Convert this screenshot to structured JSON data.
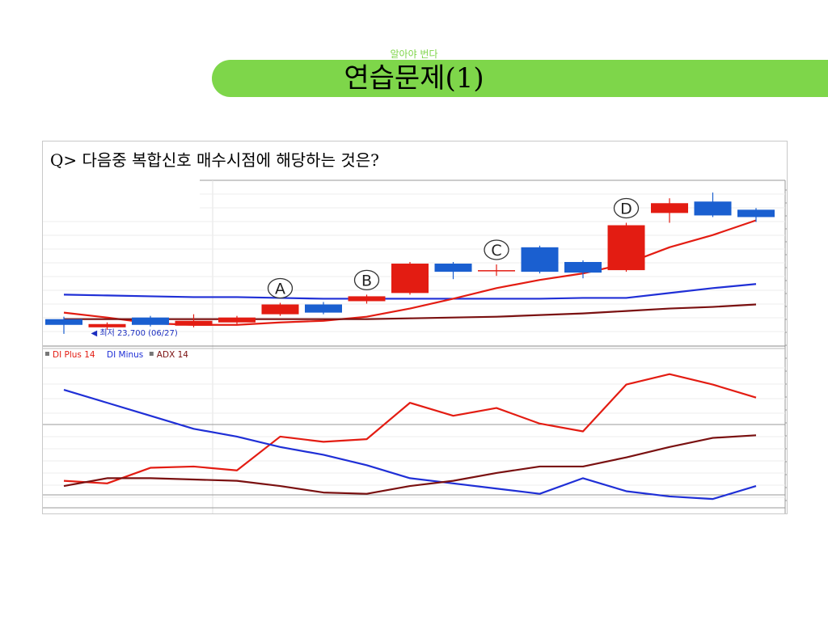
{
  "header": {
    "subtitle": "알아야 번다",
    "title": "연습문제(1)"
  },
  "question": "Q> 다음중 복합신호 매수시점에 해당하는 것은?",
  "colors": {
    "title_bar": "#7ed64a",
    "up_candle": "#e31c12",
    "down_candle": "#1a5fd0",
    "di_plus": "#e31c12",
    "di_minus": "#1f2fd6",
    "adx": "#7a1010"
  },
  "chart_data": [
    {
      "type": "candlestick",
      "price_label": "최저 23,700 (06/27)",
      "markers": [
        {
          "label": "A",
          "index": 5
        },
        {
          "label": "B",
          "index": 7
        },
        {
          "label": "C",
          "index": 10
        },
        {
          "label": "D",
          "index": 13
        }
      ],
      "candles": [
        {
          "open": 3.0,
          "close": 2.3,
          "high": 3.3,
          "low": 1.2
        },
        {
          "open": 2.0,
          "close": 2.4,
          "high": 2.6,
          "low": 1.7
        },
        {
          "open": 3.2,
          "close": 2.3,
          "high": 3.4,
          "low": 2.1
        },
        {
          "open": 2.2,
          "close": 2.8,
          "high": 3.6,
          "low": 2.0
        },
        {
          "open": 2.6,
          "close": 3.2,
          "high": 3.4,
          "low": 2.4
        },
        {
          "open": 3.6,
          "close": 4.8,
          "high": 5.0,
          "low": 3.4
        },
        {
          "open": 4.8,
          "close": 3.8,
          "high": 5.1,
          "low": 3.6
        },
        {
          "open": 5.2,
          "close": 5.8,
          "high": 6.0,
          "low": 4.9
        },
        {
          "open": 6.2,
          "close": 9.8,
          "high": 10.0,
          "low": 6.0
        },
        {
          "open": 9.8,
          "close": 8.8,
          "high": 10.0,
          "low": 7.9
        },
        {
          "open": 9.0,
          "close": 9.0,
          "high": 9.7,
          "low": 8.3
        },
        {
          "open": 11.8,
          "close": 8.8,
          "high": 12.0,
          "low": 8.6
        },
        {
          "open": 10.0,
          "close": 8.7,
          "high": 10.2,
          "low": 8.0
        },
        {
          "open": 9.0,
          "close": 14.5,
          "high": 14.8,
          "low": 8.8
        },
        {
          "open": 16.0,
          "close": 17.2,
          "high": 17.8,
          "low": 14.8
        },
        {
          "open": 17.4,
          "close": 15.7,
          "high": 18.5,
          "low": 15.5
        },
        {
          "open": 16.4,
          "close": 15.5,
          "high": 16.6,
          "low": 14.9
        }
      ],
      "series": [
        {
          "values": [
            6.0,
            5.9,
            5.8,
            5.7,
            5.7,
            5.6,
            5.5,
            5.5,
            5.5,
            5.5,
            5.5,
            5.5,
            5.6,
            5.6,
            6.2,
            6.8,
            7.3
          ]
        },
        {
          "values": [
            3.8,
            3.2,
            2.5,
            2.3,
            2.3,
            2.6,
            2.8,
            3.3,
            4.3,
            5.5,
            6.8,
            7.8,
            8.6,
            9.8,
            11.8,
            13.3,
            15.1
          ]
        },
        {
          "values": [
            3.0,
            3.0,
            3.0,
            3.0,
            3.0,
            3.0,
            3.0,
            3.0,
            3.1,
            3.2,
            3.3,
            3.5,
            3.7,
            4.0,
            4.3,
            4.5,
            4.8
          ]
        }
      ]
    },
    {
      "type": "line",
      "legend": [
        "DI Plus 14",
        "DI Minus",
        "ADX 14"
      ],
      "ylim": [
        0,
        60
      ],
      "series": [
        {
          "name": "DI Plus 14",
          "values": [
            11,
            10,
            16,
            16.5,
            15,
            28,
            26,
            27,
            41,
            36,
            39,
            33,
            30,
            48,
            52,
            48,
            43
          ]
        },
        {
          "name": "DI Minus",
          "values": [
            46,
            41,
            36,
            31,
            28,
            24,
            21,
            17,
            12,
            10,
            8,
            6,
            12,
            7,
            5,
            4,
            9
          ]
        },
        {
          "name": "ADX 14",
          "values": [
            9,
            12,
            12,
            11.5,
            11,
            9,
            6.5,
            6,
            9,
            11,
            14,
            16.5,
            16.5,
            20,
            24,
            27.5,
            28.5
          ]
        }
      ]
    }
  ]
}
